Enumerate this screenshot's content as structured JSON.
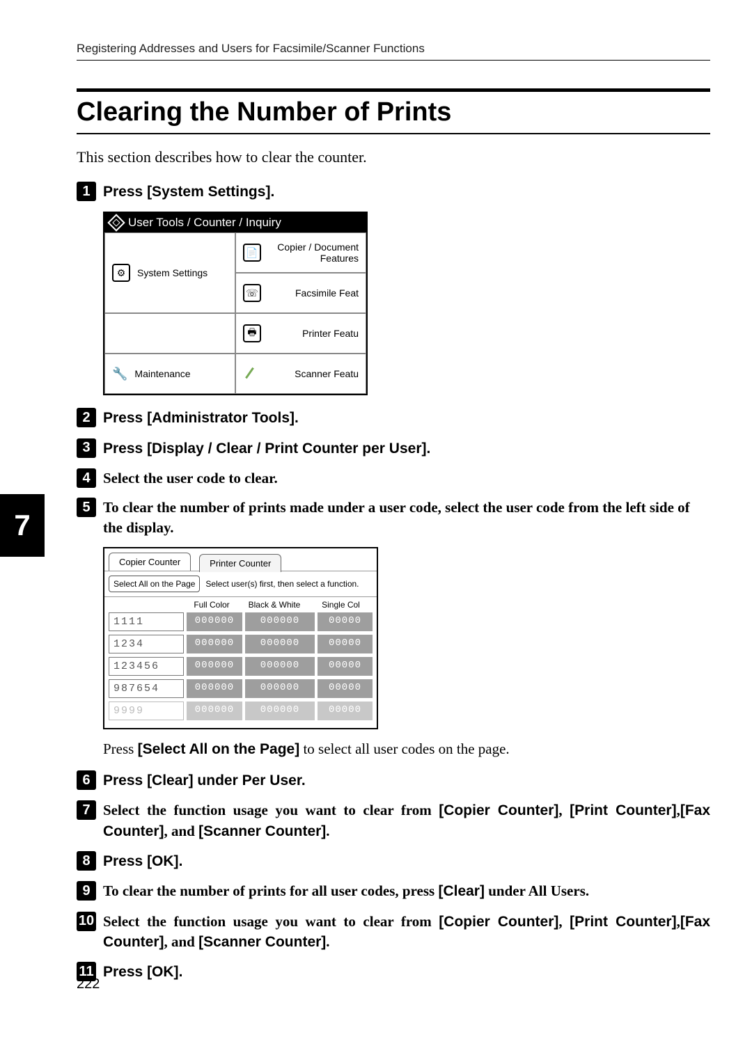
{
  "running_head": "Registering Addresses and Users for Facsimile/Scanner Functions",
  "section_title": "Clearing the Number of Prints",
  "intro": "This section describes how to clear the counter.",
  "chapter_tab": "7",
  "page_number": "222",
  "steps": {
    "s1": {
      "prefix": "Press ",
      "bold": "[System Settings]",
      "suffix": "."
    },
    "s2": {
      "prefix": "Press ",
      "bold": "[Administrator Tools]",
      "suffix": "."
    },
    "s3": {
      "prefix": "Press ",
      "bold": "[Display / Clear / Print Counter per User]",
      "suffix": "."
    },
    "s4": {
      "text": "Select the user code to clear."
    },
    "s5": {
      "text": "To clear the number of prints made under a user code, select the user code from the left side of the display."
    },
    "s6": {
      "prefix": "Press ",
      "bold": "[Clear]",
      "suffix": " under Per User."
    },
    "s7": {
      "prefix": "Select the function usage you want to clear from ",
      "b1": "[Copier Counter]",
      "mid1": ", ",
      "b2": "[Print Counter]",
      "mid2": ",",
      "b3": "[Fax Counter]",
      "mid3": ", and ",
      "b4": "[Scanner Counter]",
      "suffix": "."
    },
    "s8": {
      "prefix": "Press ",
      "bold": "[OK]",
      "suffix": "."
    },
    "s9": {
      "prefix": "To clear the number of prints for all user codes, press ",
      "bold": "[Clear]",
      "suffix": " under All Users."
    },
    "s10": {
      "prefix": "Select the function usage you want to clear from ",
      "b1": "[Copier Counter]",
      "mid1": ", ",
      "b2": "[Print Counter]",
      "mid2": ",",
      "b3": "[Fax Counter]",
      "mid3": ", and ",
      "b4": "[Scanner Counter]",
      "suffix": "."
    },
    "s11": {
      "prefix": "Press ",
      "bold": "[OK]",
      "suffix": "."
    }
  },
  "note_after_ss2": {
    "prefix": "Press ",
    "bold": "[Select All on the Page]",
    "suffix": " to select all user codes on the page."
  },
  "ss1": {
    "header": "User Tools / Counter / Inquiry",
    "system_settings": "System Settings",
    "copier_doc": "Copier / Document Features",
    "fax": "Facsimile Feat",
    "printer": "Printer Featu",
    "maintenance": "Maintenance",
    "scanner": "Scanner Featu"
  },
  "ss2": {
    "tab1": "Copier Counter",
    "tab2": "Printer Counter",
    "btn": "Select All on the Page",
    "hint": "Select user(s) first, then select a function.",
    "col1": "Full Color",
    "col2": "Black & White",
    "col3": "Single Col",
    "rows": [
      {
        "code": "1111",
        "v1": "000000",
        "v2": "000000",
        "v3": "00000"
      },
      {
        "code": "1234",
        "v1": "000000",
        "v2": "000000",
        "v3": "00000"
      },
      {
        "code": "123456",
        "v1": "000000",
        "v2": "000000",
        "v3": "00000"
      },
      {
        "code": "987654",
        "v1": "000000",
        "v2": "000000",
        "v3": "00000"
      },
      {
        "code": "9999",
        "v1": "000000",
        "v2": "000000",
        "v3": "00000"
      }
    ]
  }
}
